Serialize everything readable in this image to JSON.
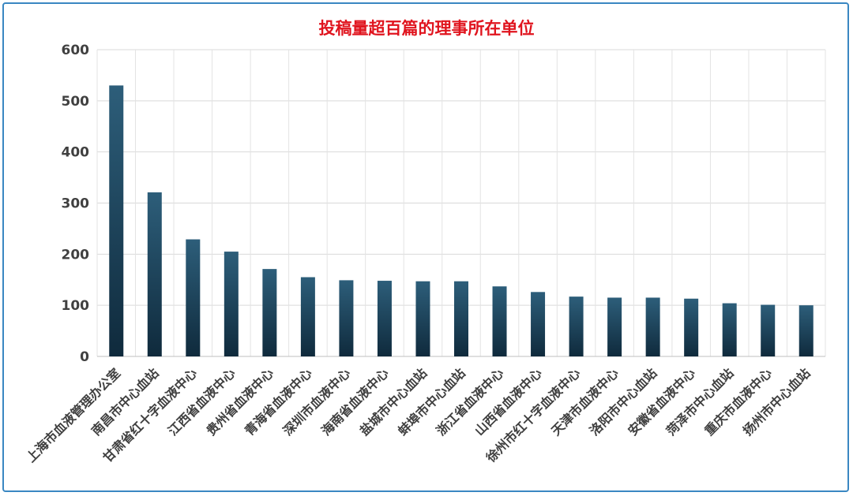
{
  "chart_data": {
    "type": "bar",
    "title": "投稿量超百篇的理事所在单位",
    "xlabel": "",
    "ylabel": "",
    "ylim": [
      0,
      600
    ],
    "yticks": [
      0,
      100,
      200,
      300,
      400,
      500,
      600
    ],
    "grid": true,
    "legend": "none",
    "bar_color_top": "#2d5e7a",
    "bar_color_bottom": "#0f2a3c",
    "categories": [
      "上海市血液管理办公室",
      "南昌市中心血站",
      "甘肃省红十字血液中心",
      "江西省血液中心",
      "贵州省血液中心",
      "青海省血液中心",
      "深圳市血液中心",
      "海南省血液中心",
      "盐城市中心血站",
      "蚌埠市中心血站",
      "浙江省血液中心",
      "山西省血液中心",
      "徐州市红十字血液中心",
      "天津市血液中心",
      "洛阳市中心血站",
      "安徽省血液中心",
      "菏泽市中心血站",
      "重庆市血液中心",
      "扬州市中心血站"
    ],
    "values": [
      530,
      321,
      229,
      205,
      171,
      155,
      149,
      148,
      147,
      147,
      137,
      126,
      117,
      115,
      115,
      113,
      104,
      101,
      100
    ]
  }
}
